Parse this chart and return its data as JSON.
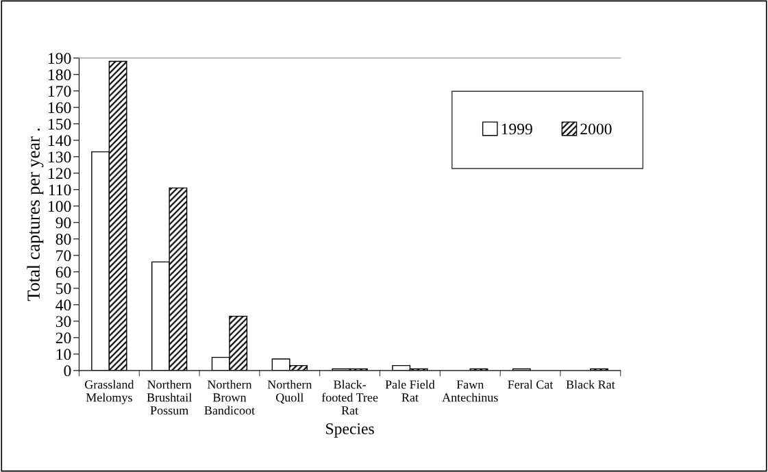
{
  "chart_data": {
    "type": "bar",
    "xlabel": "Species",
    "ylabel": "Total captures per year .",
    "categories": [
      "Grassland Melomys",
      "Northern Brushtail Possum",
      "Northern Brown Bandicoot",
      "Northern Quoll",
      "Black-footed Tree Rat",
      "Pale Field Rat",
      "Fawn Antechinus",
      "Feral Cat",
      "Black Rat"
    ],
    "series": [
      {
        "name": "1999",
        "color": "#ffffff",
        "values": [
          133,
          66,
          8,
          7,
          1,
          3,
          0,
          1,
          0
        ]
      },
      {
        "name": "2000",
        "color": "#000000",
        "values": [
          188,
          111,
          33,
          3,
          1,
          1,
          1,
          0,
          1
        ]
      }
    ],
    "ylim": [
      0,
      190
    ],
    "yticks": [
      0,
      10,
      20,
      30,
      40,
      50,
      60,
      70,
      80,
      90,
      100,
      110,
      120,
      130,
      140,
      150,
      160,
      170,
      180,
      190
    ],
    "grid": false,
    "legend": "top right"
  }
}
